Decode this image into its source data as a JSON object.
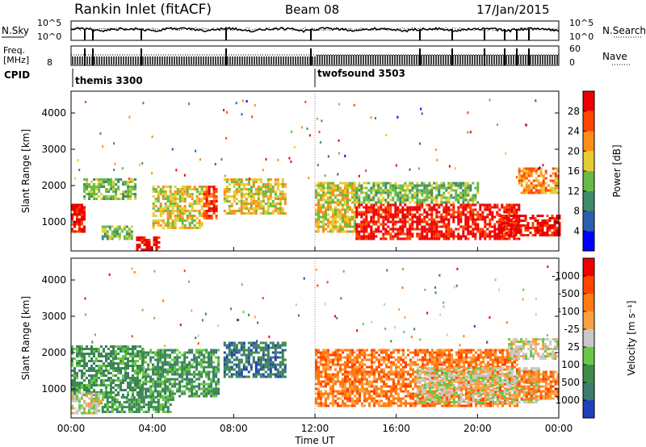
{
  "header": {
    "station": "Rankin Inlet (fitACF)",
    "beam": "Beam 08",
    "date": "17/Jan/2015"
  },
  "noise_panel": {
    "left_label": "N.Sky",
    "right_label": "N.Search",
    "left_ticks": [
      "10^5",
      "10^0"
    ],
    "right_ticks": [
      "10^5",
      "10^0"
    ]
  },
  "freq_panel": {
    "left_label": "Freq.",
    "left_unit": "[MHz]",
    "left_ticks": [
      "8"
    ],
    "right_label": "Nave",
    "right_ticks": [
      "60",
      "0"
    ]
  },
  "cpid": {
    "label": "CPID",
    "segments": [
      {
        "name": "themis 3300",
        "start": 0,
        "end": 12
      },
      {
        "name": "twofsound 3503",
        "start": 12,
        "end": 24
      }
    ]
  },
  "x_axis": {
    "label": "Time UT",
    "ticks": [
      "00:00",
      "04:00",
      "08:00",
      "12:00",
      "16:00",
      "20:00",
      "00:00"
    ],
    "range_hours": [
      0,
      24
    ]
  },
  "chart_data": [
    {
      "type": "heatmap",
      "title": "",
      "xlabel": "Time UT",
      "ylabel": "Slant Range [km]",
      "xlim": [
        0,
        24
      ],
      "ylim": [
        200,
        4600
      ],
      "y_ticks": [
        "1000",
        "2000",
        "3000",
        "4000"
      ],
      "y_tick_values": [
        1000,
        2000,
        3000,
        4000
      ],
      "colorbar": {
        "label": "Power [dB]",
        "ticks": [
          "4",
          "8",
          "12",
          "16",
          "20",
          "24",
          "28"
        ],
        "colors": [
          "#0000ff",
          "#2a5fb0",
          "#3c8c6a",
          "#66bb44",
          "#e6cc33",
          "#ff8c1a",
          "#ff4400",
          "#ee0000"
        ]
      },
      "regions": [
        {
          "t0": 0.0,
          "t1": 0.6,
          "r0": 700,
          "r1": 1500,
          "level": 7
        },
        {
          "t0": 0.6,
          "t1": 3.2,
          "r0": 1600,
          "r1": 2200,
          "level": 3
        },
        {
          "t0": 1.5,
          "t1": 3.0,
          "r0": 500,
          "r1": 900,
          "level": 3
        },
        {
          "t0": 3.2,
          "t1": 4.3,
          "r0": 250,
          "r1": 600,
          "level": 7
        },
        {
          "t0": 4.0,
          "t1": 6.5,
          "r0": 800,
          "r1": 2000,
          "level": 4
        },
        {
          "t0": 6.5,
          "t1": 7.2,
          "r0": 1100,
          "r1": 2000,
          "level": 6
        },
        {
          "t0": 7.5,
          "t1": 10.5,
          "r0": 1200,
          "r1": 2200,
          "level": 4
        },
        {
          "t0": 12.0,
          "t1": 14.0,
          "r0": 700,
          "r1": 2100,
          "level": 4
        },
        {
          "t0": 14.0,
          "t1": 22.0,
          "r0": 500,
          "r1": 1500,
          "level": 7
        },
        {
          "t0": 14.0,
          "t1": 20.0,
          "r0": 1500,
          "r1": 2100,
          "level": 3
        },
        {
          "t0": 21.0,
          "t1": 24.0,
          "r0": 600,
          "r1": 1200,
          "level": 7
        },
        {
          "t0": 22.0,
          "t1": 24.0,
          "r0": 1800,
          "r1": 2500,
          "level": 5
        }
      ]
    },
    {
      "type": "heatmap",
      "title": "",
      "xlabel": "Time UT",
      "ylabel": "Slant Range [km]",
      "xlim": [
        0,
        24
      ],
      "ylim": [
        200,
        4600
      ],
      "y_ticks": [
        "1000",
        "2000",
        "3000",
        "4000"
      ],
      "y_tick_values": [
        1000,
        2000,
        3000,
        4000
      ],
      "colorbar": {
        "label": "Velocity [m s⁻¹]",
        "ticks": [
          "1000",
          "500",
          "100",
          "25",
          "-25",
          "-100",
          "-500",
          "-1000"
        ],
        "colors": [
          "#2040b8",
          "#3d7a70",
          "#3c8c4a",
          "#66c844",
          "#c8c8c8",
          "#ffa040",
          "#ff7a10",
          "#ff4400",
          "#ee0000"
        ]
      },
      "regions": [
        {
          "t0": 0.0,
          "t1": 3.5,
          "r0": 800,
          "r1": 2200,
          "level": 2
        },
        {
          "t0": 1.5,
          "t1": 5.0,
          "r0": 350,
          "r1": 800,
          "level": 2
        },
        {
          "t0": 3.5,
          "t1": 7.2,
          "r0": 800,
          "r1": 2100,
          "level": 2
        },
        {
          "t0": 7.5,
          "t1": 10.5,
          "r0": 1300,
          "r1": 2300,
          "level": 1
        },
        {
          "t0": 0.0,
          "t1": 1.5,
          "r0": 300,
          "r1": 900,
          "level": 4
        },
        {
          "t0": 12.0,
          "t1": 22.0,
          "r0": 500,
          "r1": 2100,
          "level": 6
        },
        {
          "t0": 17.0,
          "t1": 23.0,
          "r0": 600,
          "r1": 1600,
          "level": 4
        },
        {
          "t0": 22.0,
          "t1": 24.0,
          "r0": 700,
          "r1": 1500,
          "level": 6
        },
        {
          "t0": 21.5,
          "t1": 24.0,
          "r0": 1800,
          "r1": 2400,
          "level": 4
        }
      ]
    }
  ]
}
